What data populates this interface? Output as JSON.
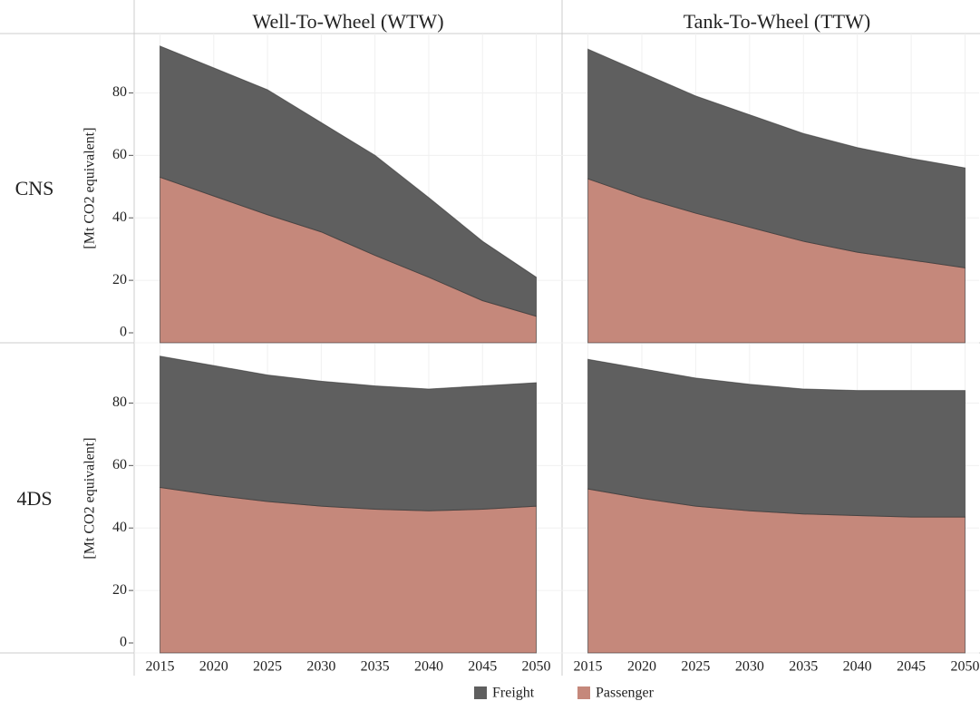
{
  "column_titles": [
    "Well-To-Wheel (WTW)",
    "Tank-To-Wheel (TTW)"
  ],
  "row_labels": [
    "CNS",
    "4DS"
  ],
  "chart_data": [
    {
      "type": "area",
      "ylabel": "[Mt CO2 equivalent]",
      "x": [
        2015,
        2020,
        2025,
        2030,
        2035,
        2040,
        2045,
        2050
      ],
      "xlim": [
        2012.6,
        2052.4
      ],
      "series": [
        {
          "name": "Freight",
          "color": "#5f5f5f",
          "values": [
            42,
            41,
            40,
            35,
            32,
            25.5,
            19,
            12.5
          ]
        },
        {
          "name": "Passenger",
          "color": "#c5887b",
          "values": [
            53,
            47,
            41,
            35.5,
            28,
            21,
            13.5,
            8.5
          ]
        }
      ],
      "ylim": [
        0,
        99
      ],
      "yticks": [
        0,
        20,
        40,
        60,
        80
      ],
      "grid": true
    },
    {
      "type": "area",
      "x": [
        2015,
        2020,
        2025,
        2030,
        2035,
        2040,
        2045,
        2050
      ],
      "xlim": [
        2012.6,
        2051.3
      ],
      "series": [
        {
          "name": "Freight",
          "color": "#5f5f5f",
          "values": [
            41.5,
            40,
            37.5,
            36,
            34.5,
            33.5,
            32.5,
            32
          ]
        },
        {
          "name": "Passenger",
          "color": "#c5887b",
          "values": [
            52.5,
            46.5,
            41.5,
            37,
            32.5,
            29,
            26.5,
            24
          ]
        }
      ],
      "ylim": [
        0,
        99
      ],
      "yticks": [
        0,
        20,
        40,
        60,
        80
      ],
      "grid": true
    },
    {
      "type": "area",
      "ylabel": "[Mt CO2 equivalent]",
      "x": [
        2015,
        2020,
        2025,
        2030,
        2035,
        2040,
        2045,
        2050
      ],
      "xlim": [
        2012.6,
        2052.4
      ],
      "series": [
        {
          "name": "Freight",
          "color": "#5f5f5f",
          "values": [
            42,
            41.5,
            40.5,
            40,
            39.5,
            39,
            39.5,
            39.5
          ]
        },
        {
          "name": "Passenger",
          "color": "#c5887b",
          "values": [
            53,
            50.5,
            48.5,
            47,
            46,
            45.5,
            46,
            47
          ]
        }
      ],
      "ylim": [
        0,
        99
      ],
      "yticks": [
        0,
        20,
        40,
        60,
        80
      ],
      "grid": true
    },
    {
      "type": "area",
      "x": [
        2015,
        2020,
        2025,
        2030,
        2035,
        2040,
        2045,
        2050
      ],
      "xlim": [
        2012.6,
        2051.3
      ],
      "series": [
        {
          "name": "Freight",
          "color": "#5f5f5f",
          "values": [
            41.5,
            41.5,
            41,
            40.5,
            40,
            40,
            40.5,
            40.5
          ]
        },
        {
          "name": "Passenger",
          "color": "#c5887b",
          "values": [
            52.5,
            49.5,
            47,
            45.5,
            44.5,
            44,
            43.5,
            43.5
          ]
        }
      ],
      "ylim": [
        0,
        99
      ],
      "yticks": [
        0,
        20,
        40,
        60,
        80
      ],
      "grid": true
    }
  ]
}
